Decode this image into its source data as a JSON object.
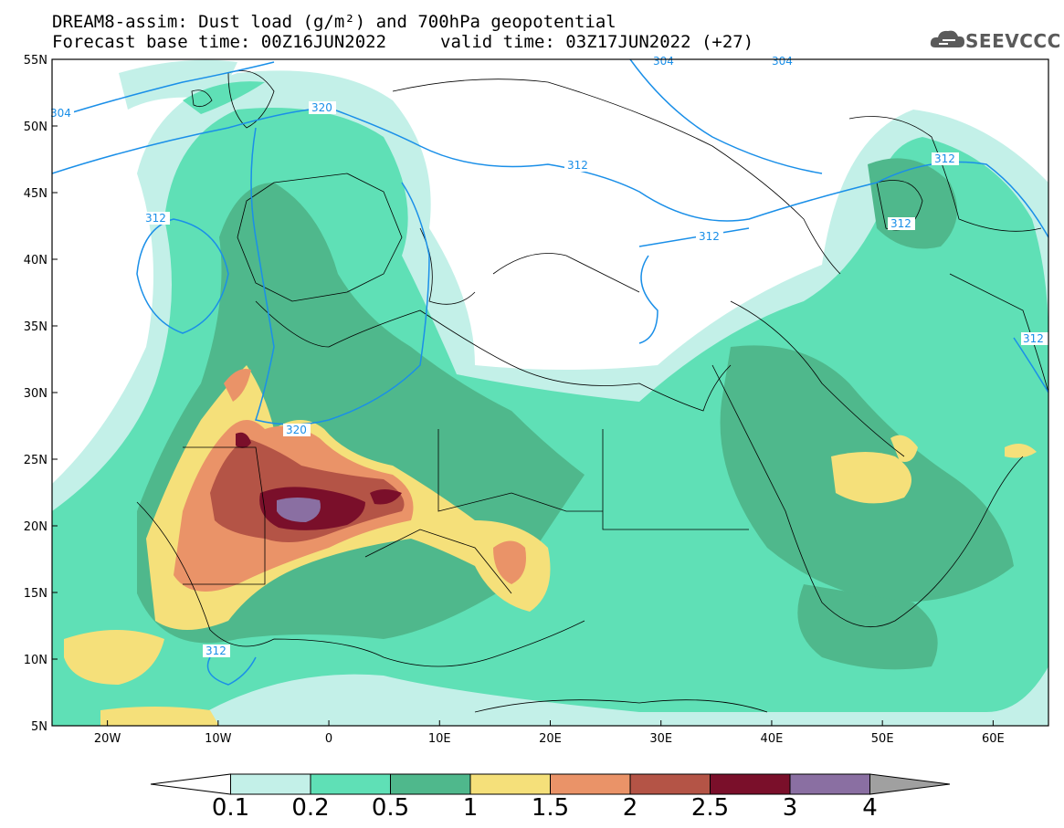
{
  "title": {
    "line1": "DREAM8-assim: Dust load (g/m²) and 700hPa geopotential",
    "line2_left": "Forecast base time: 00Z16JUN2022",
    "line2_right": "valid time: 03Z17JUN2022 (+27)"
  },
  "logo": {
    "text": "SEEVCCC",
    "icon": "cloud-icon"
  },
  "axes": {
    "lon_ticks": [
      "20W",
      "10W",
      "0",
      "10E",
      "20E",
      "30E",
      "40E",
      "50E",
      "60E"
    ],
    "lat_ticks": [
      "55N",
      "50N",
      "45N",
      "40N",
      "35N",
      "30N",
      "25N",
      "20N",
      "15N",
      "10N",
      "5N"
    ],
    "lon_range": [
      -25,
      65
    ],
    "lat_range": [
      5,
      55
    ]
  },
  "colorbar": {
    "labels": [
      "0.1",
      "0.2",
      "0.5",
      "1",
      "1.5",
      "2",
      "2.5",
      "3",
      "4"
    ],
    "colors": [
      "#ffffff",
      "#c3f0e8",
      "#5fe0b6",
      "#4fb88c",
      "#f5e07a",
      "#ea9368",
      "#b45446",
      "#7a0f2a",
      "#8a6fa2",
      "#a0a0a0"
    ]
  },
  "contours": {
    "color": "#1a8fe8",
    "labels": [
      "304",
      "320",
      "312",
      "312",
      "320",
      "312",
      "312",
      "312",
      "312",
      "304",
      "312",
      "304"
    ]
  }
}
